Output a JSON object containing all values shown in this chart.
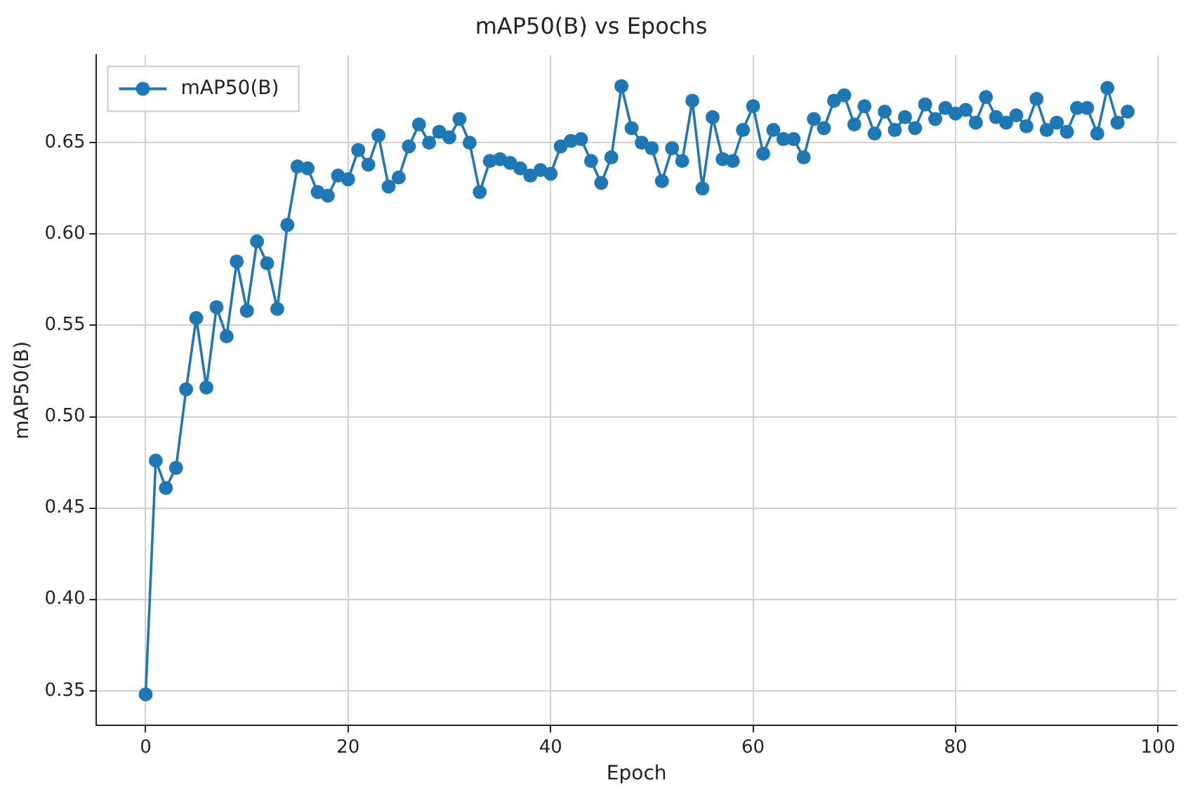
{
  "chart_data": {
    "type": "line",
    "title": "mAP50(B) vs Epochs",
    "xlabel": "Epoch",
    "ylabel": "mAP50(B)",
    "x": [
      0,
      1,
      2,
      3,
      4,
      5,
      6,
      7,
      8,
      9,
      10,
      11,
      12,
      13,
      14,
      15,
      16,
      17,
      18,
      19,
      20,
      21,
      22,
      23,
      24,
      25,
      26,
      27,
      28,
      29,
      30,
      31,
      32,
      33,
      34,
      35,
      36,
      37,
      38,
      39,
      40,
      41,
      42,
      43,
      44,
      45,
      46,
      47,
      48,
      49,
      50,
      51,
      52,
      53,
      54,
      55,
      56,
      57,
      58,
      59,
      60,
      61,
      62,
      63,
      64,
      65,
      66,
      67,
      68,
      69,
      70,
      71,
      72,
      73,
      74,
      75,
      76,
      77,
      78,
      79,
      80,
      81,
      82,
      83,
      84,
      85,
      86,
      87,
      88,
      89,
      90,
      91,
      92,
      93,
      94,
      95,
      96,
      97
    ],
    "series": [
      {
        "name": "mAP50(B)",
        "color": "#1f77b4",
        "values": [
          0.348,
          0.476,
          0.461,
          0.472,
          0.515,
          0.554,
          0.516,
          0.56,
          0.544,
          0.585,
          0.558,
          0.596,
          0.584,
          0.559,
          0.605,
          0.637,
          0.636,
          0.623,
          0.621,
          0.632,
          0.63,
          0.646,
          0.638,
          0.654,
          0.626,
          0.631,
          0.648,
          0.66,
          0.65,
          0.656,
          0.653,
          0.663,
          0.65,
          0.623,
          0.64,
          0.641,
          0.639,
          0.636,
          0.632,
          0.635,
          0.633,
          0.648,
          0.651,
          0.652,
          0.64,
          0.628,
          0.642,
          0.681,
          0.658,
          0.65,
          0.647,
          0.629,
          0.647,
          0.64,
          0.673,
          0.625,
          0.664,
          0.641,
          0.64,
          0.657,
          0.67,
          0.644,
          0.657,
          0.652,
          0.652,
          0.642,
          0.663,
          0.658,
          0.673,
          0.676,
          0.66,
          0.67,
          0.655,
          0.667,
          0.657,
          0.664,
          0.658,
          0.671,
          0.663,
          0.669,
          0.666,
          0.668,
          0.661,
          0.675,
          0.664,
          0.661,
          0.665,
          0.659,
          0.674,
          0.657,
          0.661,
          0.656,
          0.669,
          0.669,
          0.655,
          0.68,
          0.661,
          0.667
        ]
      }
    ],
    "xlim": [
      -4.85,
      101.85
    ],
    "xticks": [
      0,
      20,
      40,
      60,
      80,
      100
    ],
    "ylim": [
      0.331,
      0.698
    ],
    "yticks": [
      {
        "value": 0.35,
        "label": "0.35"
      },
      {
        "value": 0.4,
        "label": "0.40"
      },
      {
        "value": 0.45,
        "label": "0.45"
      },
      {
        "value": 0.5,
        "label": "0.50"
      },
      {
        "value": 0.55,
        "label": "0.55"
      },
      {
        "value": 0.6,
        "label": "0.60"
      },
      {
        "value": 0.65,
        "label": "0.65"
      }
    ],
    "grid": true,
    "legend": "top left",
    "marker": "circle",
    "line_style": "solid"
  }
}
